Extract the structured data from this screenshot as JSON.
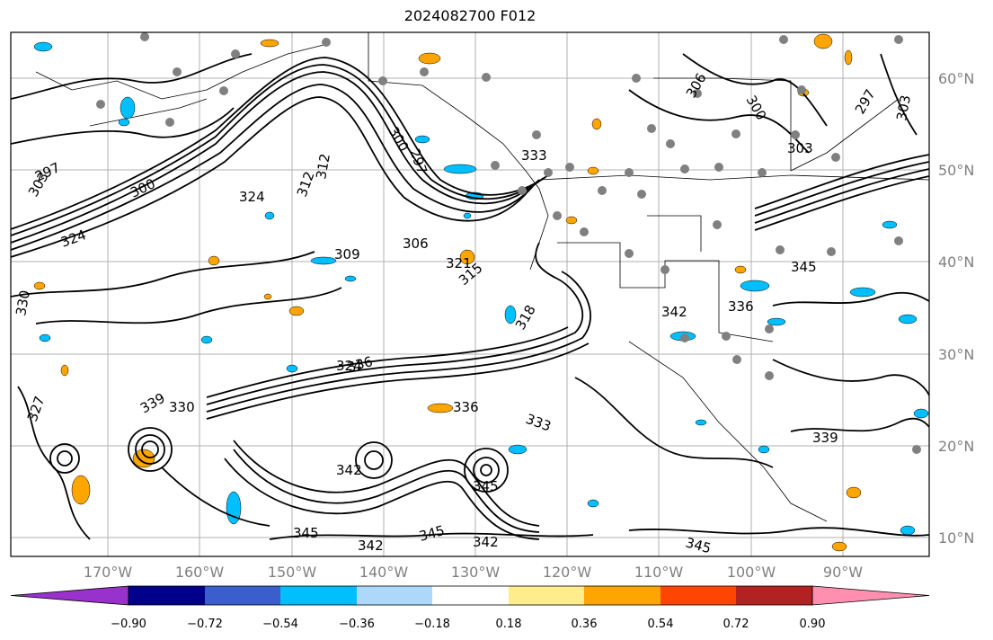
{
  "title": "2024082700 F012",
  "lat_labels": [
    "60°N",
    "50°N",
    "40°N",
    "30°N",
    "20°N",
    "10°N"
  ],
  "lon_labels": [
    "170°W",
    "160°W",
    "150°W",
    "140°W",
    "130°W",
    "120°W",
    "110°W",
    "100°W",
    "90°W"
  ],
  "colorbar": {
    "colors": [
      "#9932cc",
      "#00008b",
      "#3a5fcd",
      "#00bfff",
      "#add8fc",
      "#ffffff",
      "#ffec8b",
      "#ffa500",
      "#ff4500",
      "#b22222",
      "#ff8fb0"
    ],
    "tick_labels": [
      "−0.90",
      "−0.72",
      "−0.54",
      "−0.36",
      "−0.18",
      "0.18",
      "0.36",
      "0.54",
      "0.72",
      "0.90"
    ]
  },
  "contour_labels": [
    "297",
    "303",
    "300",
    "324",
    "312",
    "309",
    "306",
    "300",
    "297",
    "321",
    "324",
    "315",
    "330",
    "327",
    "336",
    "333",
    "336",
    "339",
    "342",
    "345",
    "345",
    "342",
    "345",
    "345",
    "342",
    "306",
    "300",
    "303",
    "297",
    "303",
    "345",
    "336",
    "339",
    "342",
    "312",
    "318",
    "324",
    "330",
    "333"
  ]
}
